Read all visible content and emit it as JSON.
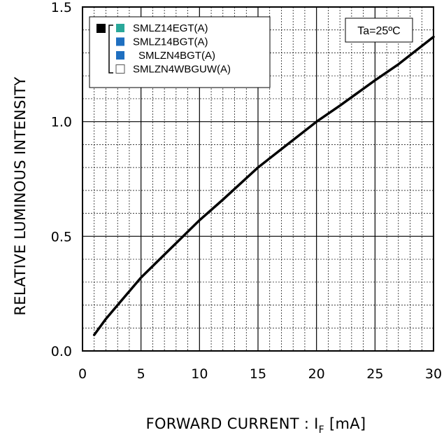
{
  "chart_data": {
    "type": "line",
    "xlabel": {
      "main": "FORWARD CURRENT : I",
      "sub": "F",
      "unit": " [mA]"
    },
    "ylabel": "RELATIVE LUMINOUS INTENSITY",
    "xlim": [
      0,
      30
    ],
    "ylim": [
      0,
      1.5
    ],
    "x_ticks": [
      "0",
      "5",
      "10",
      "15",
      "20",
      "25",
      "30"
    ],
    "y_ticks": [
      "0.0",
      "0.5",
      "1.0",
      "1.5"
    ],
    "grid": true,
    "legend_position": "top-left",
    "annotation": "Ta=25ºC",
    "legend": [
      {
        "label": "SMLZ14EGT(A)",
        "color": "#2aa89a"
      },
      {
        "label": "SMLZ14BGT(A)",
        "color": "#1f6fc0"
      },
      {
        "label": "SMLZN4BGT(A)",
        "color": "#1f6fc0"
      },
      {
        "label": "SMLZN4WBGUW(A)",
        "color": "#ffffff"
      }
    ],
    "series": [
      {
        "line_color": "#000000",
        "x": [
          1,
          2,
          3,
          5,
          7,
          10,
          12,
          15,
          17,
          20,
          22,
          25,
          27,
          30
        ],
        "y": [
          0.07,
          0.14,
          0.2,
          0.32,
          0.42,
          0.57,
          0.66,
          0.8,
          0.88,
          1.0,
          1.07,
          1.18,
          1.25,
          1.37
        ]
      }
    ]
  }
}
